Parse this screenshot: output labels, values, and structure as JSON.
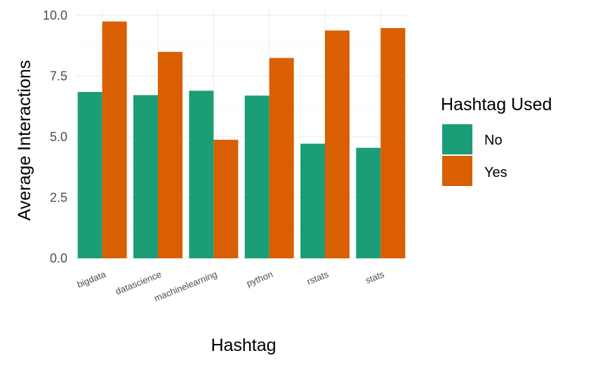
{
  "chart_data": {
    "type": "bar",
    "categories": [
      "bigdata",
      "datascience",
      "machinelearning",
      "python",
      "rstats",
      "stats"
    ],
    "series": [
      {
        "name": "No",
        "values": [
          6.85,
          6.72,
          6.9,
          6.7,
          4.72,
          4.55
        ],
        "color": "#1b9e77"
      },
      {
        "name": "Yes",
        "values": [
          9.75,
          8.5,
          4.88,
          8.25,
          9.38,
          9.48
        ],
        "color": "#d95f02"
      }
    ],
    "xlabel": "Hashtag",
    "ylabel": "Average Interactions",
    "ylim": [
      0,
      10
    ],
    "yticks": [
      "0.0",
      "2.5",
      "5.0",
      "7.5",
      "10.0"
    ],
    "ytick_values": [
      0,
      2.5,
      5,
      7.5,
      10
    ],
    "grid": true,
    "legend": {
      "title": "Hashtag Used",
      "position": "right",
      "entries": [
        "No",
        "Yes"
      ]
    }
  }
}
